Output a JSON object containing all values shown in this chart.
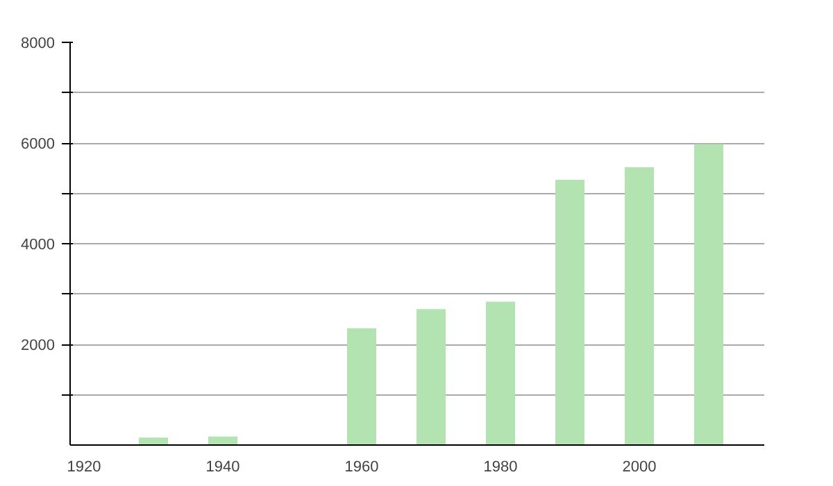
{
  "chart_data": {
    "type": "bar",
    "x": [
      1930,
      1940,
      1960,
      1970,
      1980,
      1990,
      2000,
      2010
    ],
    "values": [
      150,
      170,
      2320,
      2700,
      2850,
      5270,
      5520,
      5980
    ],
    "color": "#b3e3b0",
    "xlim": [
      1918,
      2018
    ],
    "xticks": [
      1920,
      1940,
      1960,
      1980,
      2000
    ],
    "ylim": [
      0,
      8000
    ],
    "yticks": [
      {
        "value": 1000,
        "label": null
      },
      2000,
      {
        "value": 3000,
        "label": null
      },
      4000,
      {
        "value": 5000,
        "label": null
      },
      6000,
      {
        "value": 7000,
        "label": null
      },
      8000
    ],
    "grid": "y"
  }
}
